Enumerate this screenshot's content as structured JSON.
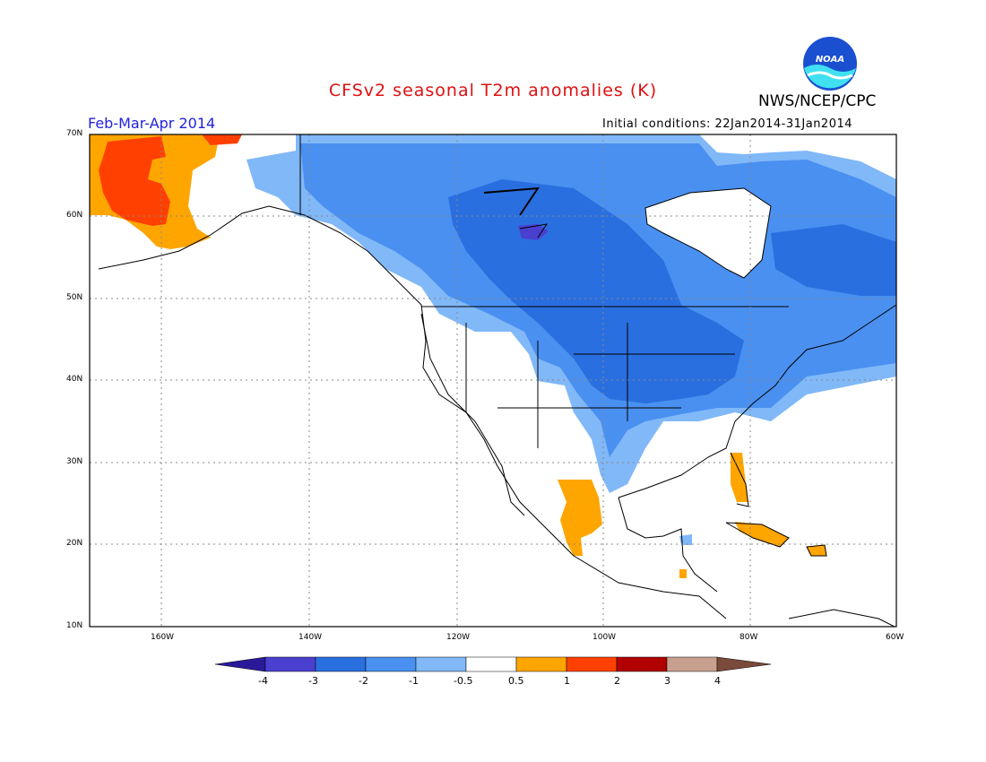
{
  "title": "CFSv2 seasonal T2m anomalies (K)",
  "agency": "NWS/NCEP/CPC",
  "logo_text": "NOAA",
  "period": "Feb-Mar-Apr 2014",
  "initial_conditions": "Initial conditions: 22Jan2014-31Jan2014",
  "lat_labels": [
    "70N",
    "60N",
    "50N",
    "40N",
    "30N",
    "20N",
    "10N"
  ],
  "lon_labels": [
    "160W",
    "140W",
    "120W",
    "100W",
    "80W",
    "60W"
  ],
  "colorbar": {
    "labels": [
      "-4",
      "-3",
      "-2",
      "-1",
      "-0.5",
      "0.5",
      "1",
      "2",
      "3",
      "4"
    ],
    "colors": [
      "#2a1a9a",
      "#4a3fcf",
      "#2a6fe0",
      "#4a90f0",
      "#80b8f8",
      "#ffffff",
      "#ffa500",
      "#ff4000",
      "#b00000",
      "#c8a090",
      "#7a4a3a"
    ]
  },
  "regions": [
    {
      "name": "alaska-warm-anomaly",
      "category": "1 to 2"
    },
    {
      "name": "alaska-mild-anomaly",
      "category": "0.5 to 1"
    },
    {
      "name": "canada-us-cold-anomaly",
      "category": "-1 to -2"
    },
    {
      "name": "central-us-cold-anomaly",
      "category": "-2 to -3"
    },
    {
      "name": "hudson-core-cold-anomaly",
      "category": "-3 to -4"
    },
    {
      "name": "florida-warm-anomaly",
      "category": "0.5 to 1"
    },
    {
      "name": "mexico-warm-anomaly",
      "category": "0.5 to 1"
    },
    {
      "name": "caribbean-warm-anomaly",
      "category": "0.5 to 1"
    }
  ]
}
